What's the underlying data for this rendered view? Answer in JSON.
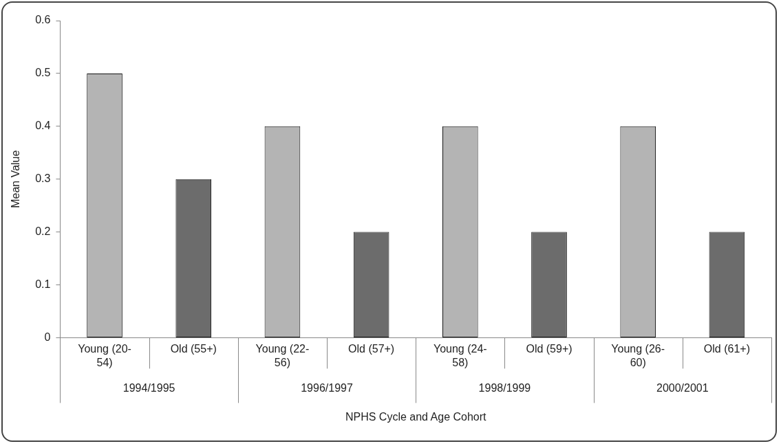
{
  "chart_data": {
    "type": "bar",
    "xlabel": "NPHS Cycle and Age Cohort",
    "ylabel": "Mean Value",
    "categories": [
      "Young (20-54)",
      "Old (55+)",
      "Young (22-56)",
      "Old (57+)",
      "Young (24-58)",
      "Old (59+)",
      "Young (26-60)",
      "Old (61+)"
    ],
    "values": [
      0.5,
      0.3,
      0.4,
      0.2,
      0.4,
      0.2,
      0.4,
      0.2
    ],
    "colors": [
      "#b4b4b4",
      "#6c6c6c",
      "#b4b4b4",
      "#6c6c6c",
      "#b4b4b4",
      "#6c6c6c",
      "#b4b4b4",
      "#6c6c6c"
    ],
    "annotations": [
      "1994/1995",
      "1996/1997",
      "1998/1999",
      "2000/2001"
    ],
    "ylim": [
      0,
      0.6
    ],
    "yticks": [
      0,
      0.1,
      0.2,
      0.3,
      0.4,
      0.5,
      0.6
    ],
    "grid": false,
    "legend": false
  }
}
